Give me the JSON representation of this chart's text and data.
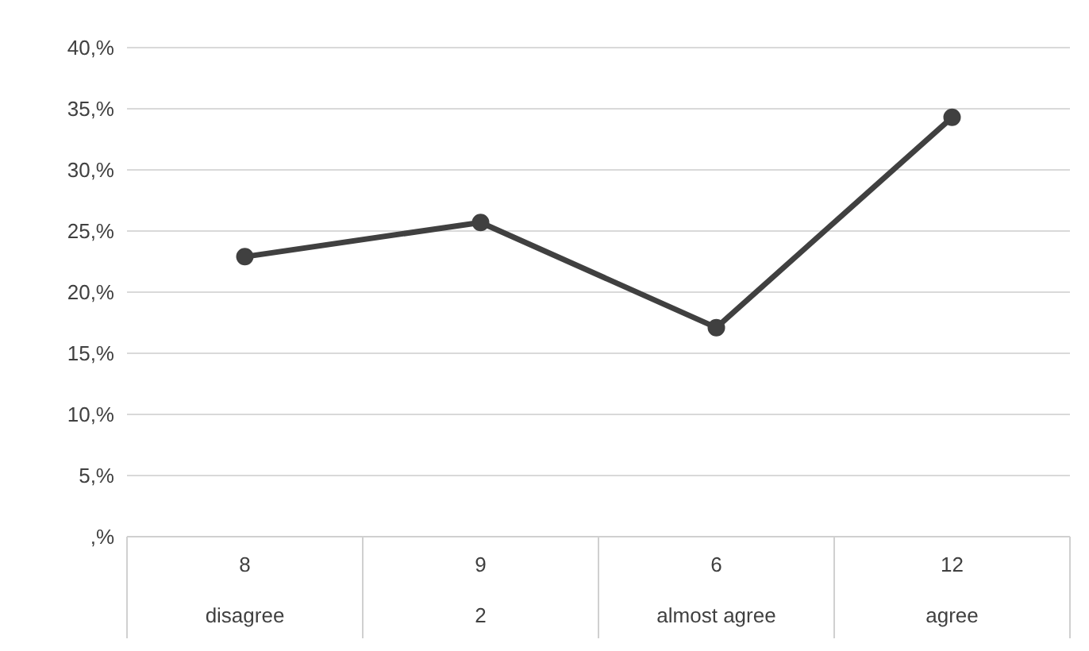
{
  "chart_data": {
    "type": "line",
    "categories": [
      "8\ndisagree",
      "9\n2",
      "6\nalmost agree",
      "12\nagree"
    ],
    "series": [
      {
        "color": "#404040",
        "values": [
          22.9,
          25.7,
          17.1,
          34.3
        ]
      }
    ],
    "ylim": [
      0,
      40
    ],
    "yticks": [
      {
        "value": 0,
        "label": ",%"
      },
      {
        "value": 5,
        "label": "5,%"
      },
      {
        "value": 10,
        "label": "10,%"
      },
      {
        "value": 15,
        "label": "15,%"
      },
      {
        "value": 20,
        "label": "20,%"
      },
      {
        "value": 25,
        "label": "25,%"
      },
      {
        "value": 30,
        "label": "30,%"
      },
      {
        "value": 35,
        "label": "35,%"
      },
      {
        "value": 40,
        "label": "40,%"
      }
    ],
    "grid": "y",
    "marker": "circle",
    "line_style": "solid"
  }
}
